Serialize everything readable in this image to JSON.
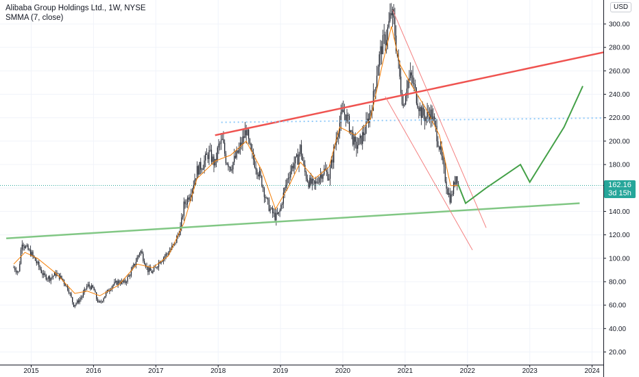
{
  "legend": {
    "title": "Alibaba Group Holdings Ltd., 1W, NYSE",
    "indicator": "SMMA (7, close)"
  },
  "currency_button": "USD",
  "last_price": {
    "value": "162.16",
    "countdown": "3d 15h"
  },
  "colors": {
    "bull": "#26a69a",
    "bear": "#ef5350",
    "candle": "#131722",
    "smma": "#f57c00",
    "resistance": "#ef5350",
    "support": "#81c784",
    "channel": "#f48080",
    "projection": "#43a047",
    "dotted_level": "#90caf9",
    "last_price_line": "#26a69a"
  },
  "chart_data": {
    "type": "candlestick",
    "symbol": "Alibaba Group Holdings Ltd.",
    "interval": "1W",
    "exchange": "NYSE",
    "currency": "USD",
    "ylim": [
      10,
      320
    ],
    "xlim": [
      2014.6,
      2024.55
    ],
    "y_ticks": [
      "20.00",
      "40.00",
      "60.00",
      "80.00",
      "100.00",
      "120.00",
      "140.00",
      "160.00",
      "180.00",
      "200.00",
      "220.00",
      "240.00",
      "260.00",
      "280.00",
      "300.00"
    ],
    "x_ticks": [
      "2015",
      "2016",
      "2017",
      "2018",
      "2019",
      "2020",
      "2021",
      "2022",
      "2023",
      "2024"
    ],
    "grid": true,
    "price_path": [
      [
        2014.72,
        92
      ],
      [
        2014.8,
        88
      ],
      [
        2014.85,
        115
      ],
      [
        2014.9,
        110
      ],
      [
        2015.0,
        104
      ],
      [
        2015.1,
        95
      ],
      [
        2015.2,
        85
      ],
      [
        2015.3,
        83
      ],
      [
        2015.4,
        87
      ],
      [
        2015.5,
        82
      ],
      [
        2015.6,
        73
      ],
      [
        2015.68,
        60
      ],
      [
        2015.75,
        63
      ],
      [
        2015.82,
        68
      ],
      [
        2015.9,
        77
      ],
      [
        2016.0,
        74
      ],
      [
        2016.05,
        65
      ],
      [
        2016.1,
        61
      ],
      [
        2016.2,
        70
      ],
      [
        2016.3,
        77
      ],
      [
        2016.4,
        80
      ],
      [
        2016.5,
        79
      ],
      [
        2016.6,
        88
      ],
      [
        2016.7,
        100
      ],
      [
        2016.75,
        107
      ],
      [
        2016.8,
        100
      ],
      [
        2016.87,
        90
      ],
      [
        2016.95,
        88
      ],
      [
        2017.05,
        97
      ],
      [
        2017.2,
        105
      ],
      [
        2017.3,
        112
      ],
      [
        2017.4,
        127
      ],
      [
        2017.45,
        145
      ],
      [
        2017.5,
        150
      ],
      [
        2017.58,
        160
      ],
      [
        2017.66,
        175
      ],
      [
        2017.75,
        180
      ],
      [
        2017.85,
        190
      ],
      [
        2017.95,
        180
      ],
      [
        2018.0,
        195
      ],
      [
        2018.07,
        200
      ],
      [
        2018.12,
        185
      ],
      [
        2018.2,
        178
      ],
      [
        2018.3,
        188
      ],
      [
        2018.35,
        195
      ],
      [
        2018.42,
        205
      ],
      [
        2018.45,
        210
      ],
      [
        2018.52,
        190
      ],
      [
        2018.6,
        180
      ],
      [
        2018.7,
        165
      ],
      [
        2018.78,
        148
      ],
      [
        2018.85,
        140
      ],
      [
        2018.92,
        135
      ],
      [
        2018.98,
        138
      ],
      [
        2019.05,
        155
      ],
      [
        2019.12,
        170
      ],
      [
        2019.2,
        180
      ],
      [
        2019.28,
        185
      ],
      [
        2019.32,
        195
      ],
      [
        2019.38,
        175
      ],
      [
        2019.45,
        165
      ],
      [
        2019.55,
        162
      ],
      [
        2019.62,
        170
      ],
      [
        2019.7,
        175
      ],
      [
        2019.78,
        170
      ],
      [
        2019.85,
        190
      ],
      [
        2019.92,
        210
      ],
      [
        2020.0,
        225
      ],
      [
        2020.05,
        222
      ],
      [
        2020.12,
        210
      ],
      [
        2020.2,
        195
      ],
      [
        2020.28,
        200
      ],
      [
        2020.36,
        210
      ],
      [
        2020.44,
        225
      ],
      [
        2020.5,
        240
      ],
      [
        2020.56,
        265
      ],
      [
        2020.62,
        280
      ],
      [
        2020.7,
        290
      ],
      [
        2020.78,
        310
      ],
      [
        2020.82,
        300
      ],
      [
        2020.88,
        270
      ],
      [
        2020.92,
        250
      ],
      [
        2020.97,
        230
      ],
      [
        2021.03,
        250
      ],
      [
        2021.1,
        255
      ],
      [
        2021.17,
        240
      ],
      [
        2021.25,
        225
      ],
      [
        2021.33,
        220
      ],
      [
        2021.4,
        225
      ],
      [
        2021.47,
        215
      ],
      [
        2021.55,
        195
      ],
      [
        2021.62,
        175
      ],
      [
        2021.68,
        158
      ],
      [
        2021.73,
        150
      ],
      [
        2021.78,
        162
      ],
      [
        2021.82,
        172
      ],
      [
        2021.86,
        162
      ]
    ],
    "smma_path": [
      [
        2014.72,
        95
      ],
      [
        2014.9,
        105
      ],
      [
        2015.1,
        100
      ],
      [
        2015.4,
        87
      ],
      [
        2015.7,
        70
      ],
      [
        2015.9,
        72
      ],
      [
        2016.1,
        68
      ],
      [
        2016.4,
        77
      ],
      [
        2016.7,
        95
      ],
      [
        2016.95,
        92
      ],
      [
        2017.2,
        102
      ],
      [
        2017.45,
        130
      ],
      [
        2017.66,
        168
      ],
      [
        2017.95,
        183
      ],
      [
        2018.2,
        188
      ],
      [
        2018.45,
        200
      ],
      [
        2018.7,
        175
      ],
      [
        2018.92,
        142
      ],
      [
        2019.12,
        160
      ],
      [
        2019.32,
        182
      ],
      [
        2019.55,
        168
      ],
      [
        2019.78,
        178
      ],
      [
        2019.95,
        212
      ],
      [
        2020.2,
        205
      ],
      [
        2020.44,
        218
      ],
      [
        2020.62,
        262
      ],
      [
        2020.78,
        298
      ],
      [
        2020.92,
        265
      ],
      [
        2021.1,
        248
      ],
      [
        2021.33,
        228
      ],
      [
        2021.55,
        205
      ],
      [
        2021.73,
        162
      ],
      [
        2021.86,
        162
      ]
    ],
    "drawings": {
      "resistance_line": [
        [
          2017.95,
          205
        ],
        [
          2024.55,
          280
        ]
      ],
      "support_line": [
        [
          2014.6,
          117
        ],
        [
          2023.8,
          147
        ]
      ],
      "dotted_level": [
        [
          2018.05,
          216
        ],
        [
          2024.55,
          220
        ]
      ],
      "channel_upper": [
        [
          2020.8,
          312
        ],
        [
          2022.3,
          126
        ]
      ],
      "channel_lower": [
        [
          2020.68,
          238
        ],
        [
          2022.08,
          107
        ]
      ],
      "projection": [
        [
          2021.85,
          163
        ],
        [
          2021.97,
          147
        ],
        [
          2022.3,
          160
        ],
        [
          2022.85,
          180
        ],
        [
          2023.0,
          165
        ],
        [
          2023.55,
          212
        ],
        [
          2023.85,
          247
        ]
      ]
    }
  }
}
